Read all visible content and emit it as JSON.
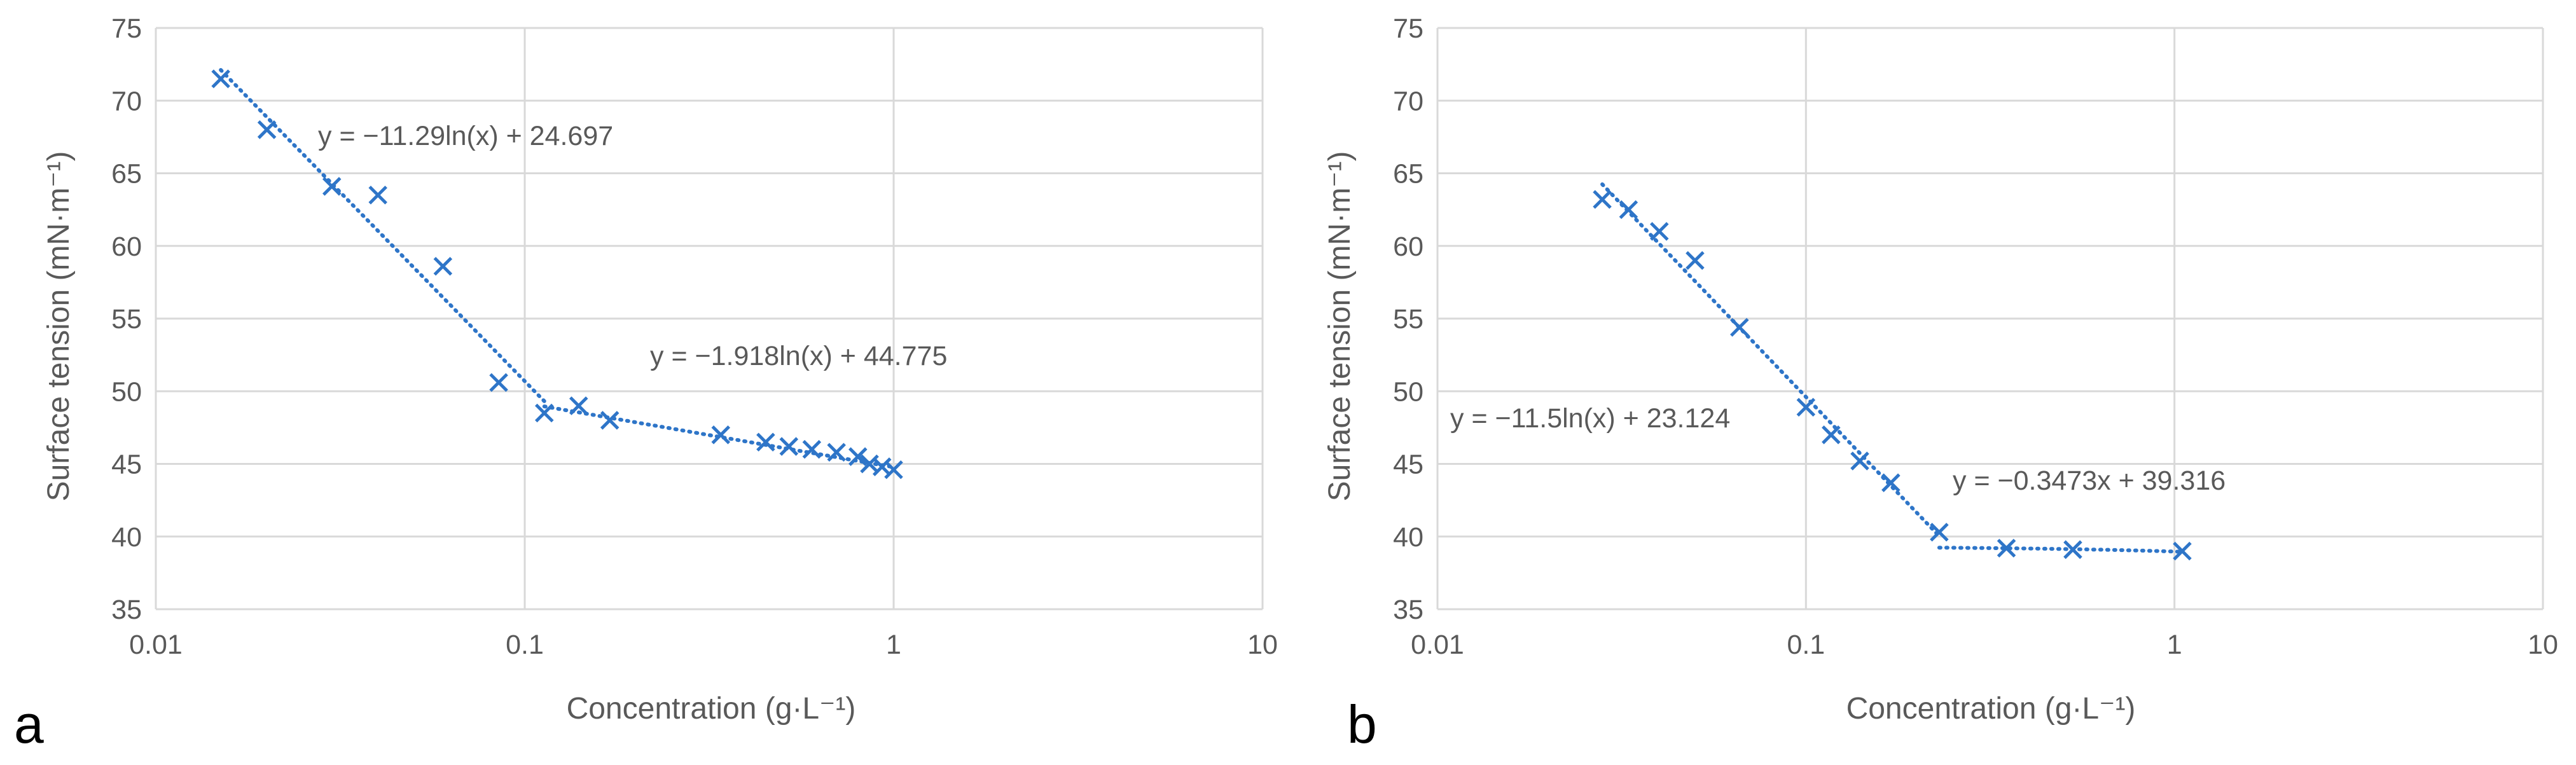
{
  "chart_data": [
    {
      "type": "scatter",
      "panel_label": "a",
      "xlabel": "Concentration (g·L⁻¹)",
      "ylabel": "Surface tension (mN·m⁻¹)",
      "xscale": "log",
      "xlim": [
        0.01,
        10
      ],
      "ylim": [
        35,
        75
      ],
      "xticks": [
        {
          "value": 0.01,
          "label": "0.01"
        },
        {
          "value": 0.1,
          "label": "0.1"
        },
        {
          "value": 1,
          "label": "1"
        },
        {
          "value": 10,
          "label": "10"
        }
      ],
      "yticks": [
        35,
        40,
        45,
        50,
        55,
        60,
        65,
        70,
        75
      ],
      "grid": true,
      "marker": "x",
      "color": "#2e75c8",
      "points": [
        {
          "x": 0.015,
          "y": 71.5
        },
        {
          "x": 0.02,
          "y": 68.0
        },
        {
          "x": 0.03,
          "y": 64.1
        },
        {
          "x": 0.04,
          "y": 63.5
        },
        {
          "x": 0.06,
          "y": 58.6
        },
        {
          "x": 0.085,
          "y": 50.6
        },
        {
          "x": 0.113,
          "y": 48.5
        },
        {
          "x": 0.14,
          "y": 49.0
        },
        {
          "x": 0.17,
          "y": 48.0
        },
        {
          "x": 0.34,
          "y": 47.0
        },
        {
          "x": 0.45,
          "y": 46.5
        },
        {
          "x": 0.52,
          "y": 46.2
        },
        {
          "x": 0.6,
          "y": 46.0
        },
        {
          "x": 0.7,
          "y": 45.8
        },
        {
          "x": 0.8,
          "y": 45.5
        },
        {
          "x": 0.86,
          "y": 45.0
        },
        {
          "x": 0.93,
          "y": 44.8
        },
        {
          "x": 1.0,
          "y": 44.6
        }
      ],
      "trendlines": [
        {
          "type": "log",
          "a": -11.29,
          "b": 24.697,
          "x_range": [
            0.015,
            0.113
          ],
          "equation": "y = −11.29ln(x) + 24.697"
        },
        {
          "type": "log",
          "a": -1.918,
          "b": 44.775,
          "x_range": [
            0.113,
            1.0
          ],
          "equation": "y = −1.918ln(x) + 44.775"
        }
      ]
    },
    {
      "type": "scatter",
      "panel_label": "b",
      "xlabel": "Concentration (g·L⁻¹)",
      "ylabel": "Surface tension (mN·m⁻¹)",
      "xscale": "log",
      "xlim": [
        0.01,
        10
      ],
      "ylim": [
        35,
        75
      ],
      "xticks": [
        {
          "value": 0.01,
          "label": "0.01"
        },
        {
          "value": 0.1,
          "label": "0.1"
        },
        {
          "value": 1,
          "label": "1"
        },
        {
          "value": 10,
          "label": "10"
        }
      ],
      "yticks": [
        35,
        40,
        45,
        50,
        55,
        60,
        65,
        70,
        75
      ],
      "grid": true,
      "marker": "x",
      "color": "#2e75c8",
      "points": [
        {
          "x": 0.028,
          "y": 63.2
        },
        {
          "x": 0.033,
          "y": 62.5
        },
        {
          "x": 0.04,
          "y": 61.0
        },
        {
          "x": 0.05,
          "y": 59.0
        },
        {
          "x": 0.066,
          "y": 54.4
        },
        {
          "x": 0.1,
          "y": 48.9
        },
        {
          "x": 0.117,
          "y": 47.0
        },
        {
          "x": 0.14,
          "y": 45.2
        },
        {
          "x": 0.17,
          "y": 43.7
        },
        {
          "x": 0.23,
          "y": 40.3
        },
        {
          "x": 0.35,
          "y": 39.2
        },
        {
          "x": 0.53,
          "y": 39.1
        },
        {
          "x": 1.05,
          "y": 39.0
        }
      ],
      "trendlines": [
        {
          "type": "log",
          "a": -11.5,
          "b": 23.124,
          "x_range": [
            0.028,
            0.23
          ],
          "equation": "y = −11.5ln(x) + 23.124"
        },
        {
          "type": "linear",
          "a": -0.3473,
          "b": 39.316,
          "x_range": [
            0.23,
            1.05
          ],
          "equation": "y = −0.3473x + 39.316"
        }
      ]
    }
  ]
}
